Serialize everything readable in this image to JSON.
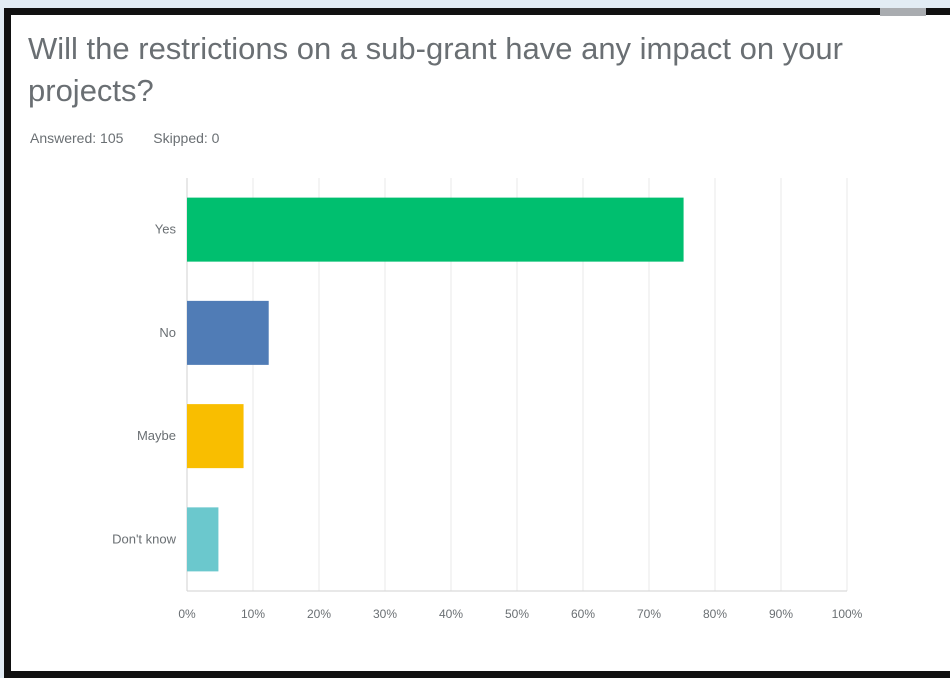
{
  "question": {
    "title": "Will the restrictions on a sub-grant have any impact on your projects?",
    "answered": "Answered: 105",
    "skipped": "Skipped: 0"
  },
  "chart_data": {
    "type": "bar",
    "orientation": "horizontal",
    "categories": [
      "Yes",
      "No",
      "Maybe",
      "Don't know"
    ],
    "values": [
      75.24,
      12.38,
      8.57,
      4.76
    ],
    "colors": [
      "#00bf6f",
      "#507cb6",
      "#f9be00",
      "#6bc8cd"
    ],
    "xlim": [
      0,
      100
    ],
    "xticks": [
      "0%",
      "10%",
      "20%",
      "30%",
      "40%",
      "50%",
      "60%",
      "70%",
      "80%",
      "90%",
      "100%"
    ],
    "grid": true
  }
}
